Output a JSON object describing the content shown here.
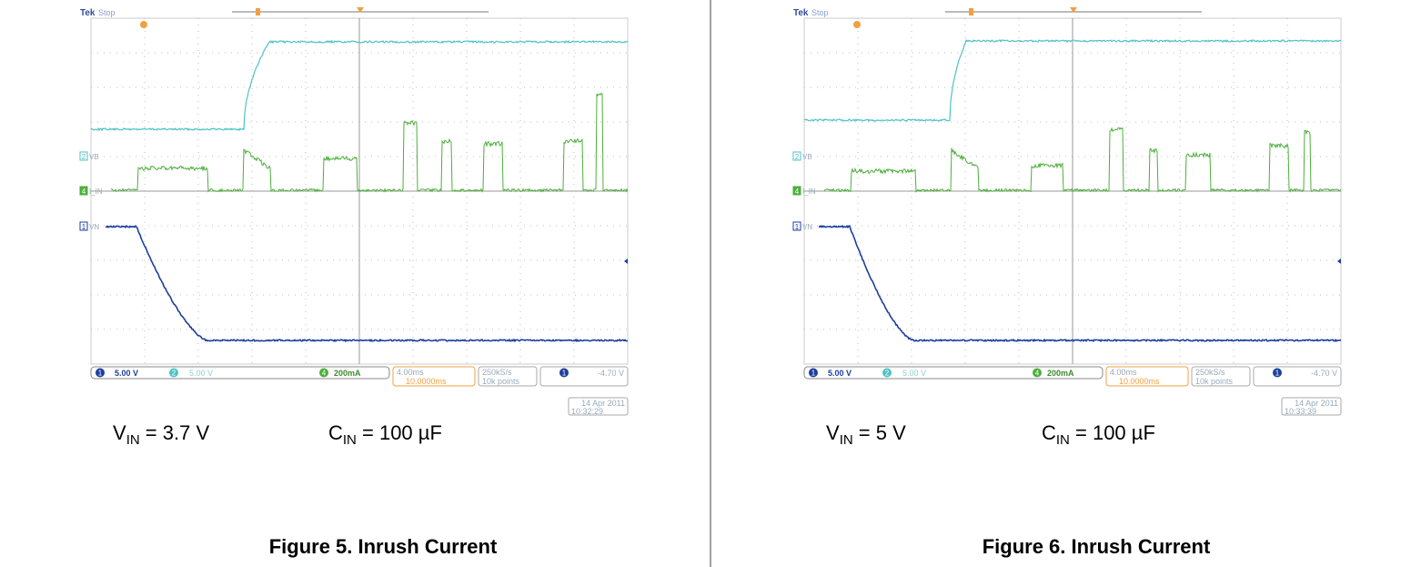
{
  "panels": [
    {
      "scope": {
        "brand": "Tek",
        "status": "Stop",
        "channels": [
          {
            "number": "2",
            "label": "VB"
          },
          {
            "number": "4",
            "label": "I_IN"
          },
          {
            "number": "1",
            "label": "VN"
          }
        ],
        "readouts": {
          "ch1": "5.00 V",
          "ch2": "5.00 V",
          "ch4": "200mA",
          "timebase": "4.00ms",
          "delay": "10.0000ms",
          "rate": "250kS/s",
          "points": "10k points",
          "trigger": "-4.70 V",
          "date": "14 Apr 2011",
          "time": "10:32:29"
        }
      },
      "caption": {
        "v_symbol": "V",
        "v_sub": "IN",
        "v_rest": " = 3.7 V",
        "c_symbol": "C",
        "c_sub": "IN",
        "c_rest": " = 100 µF"
      },
      "figure": "Figure 5. Inrush Current"
    },
    {
      "scope": {
        "brand": "Tek",
        "status": "Stop",
        "channels": [
          {
            "number": "2",
            "label": "VB"
          },
          {
            "number": "4",
            "label": "I_IN"
          },
          {
            "number": "1",
            "label": "VN"
          }
        ],
        "readouts": {
          "ch1": "5.00 V",
          "ch2": "5.00 V",
          "ch4": "200mA",
          "timebase": "4.00ms",
          "delay": "10.0000ms",
          "rate": "250kS/s",
          "points": "10k points",
          "trigger": "-4.70 V",
          "date": "14 Apr 2011",
          "time": "10:33:39"
        }
      },
      "caption": {
        "v_symbol": "V",
        "v_sub": "IN",
        "v_rest": " = 5 V",
        "c_symbol": "C",
        "c_sub": "IN",
        "c_rest": " = 100 µF"
      },
      "figure": "Figure 6. Inrush Current"
    }
  ]
}
